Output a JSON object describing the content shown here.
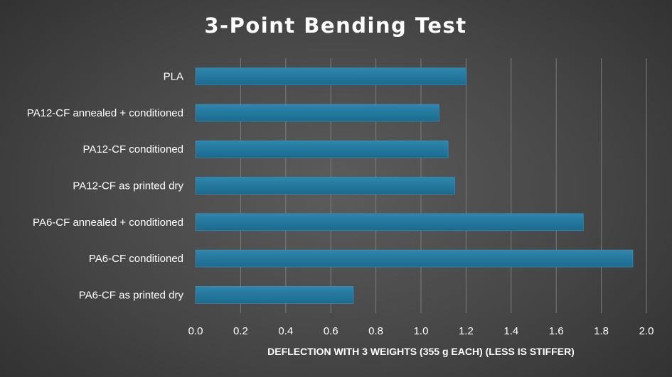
{
  "chart_data": {
    "type": "bar",
    "orientation": "horizontal",
    "title": "3-Point Bending Test",
    "xlabel": "DEFLECTION WITH 3 WEIGHTS (355 g EACH) (LESS IS STIFFER)",
    "ylabel": "",
    "categories": [
      "PLA",
      "PA12-CF annealed + conditioned",
      "PA12-CF conditioned",
      "PA12-CF as printed dry",
      "PA6-CF annealed + conditioned",
      "PA6-CF conditioned",
      "PA6-CF as printed dry"
    ],
    "values": [
      1.2,
      1.08,
      1.12,
      1.15,
      1.72,
      1.94,
      0.7
    ],
    "xlim": [
      0,
      2.0
    ],
    "ticks": [
      "0.0",
      "0.2",
      "0.4",
      "0.6",
      "0.8",
      "1.0",
      "1.2",
      "1.4",
      "1.6",
      "1.8",
      "2.0"
    ],
    "grid": true,
    "legend": "none",
    "colors": {
      "bar": "#1b6a8e",
      "bar_highlight": "#2f86ad",
      "text": "#ffffff",
      "grid": "#7c7c7c"
    }
  }
}
